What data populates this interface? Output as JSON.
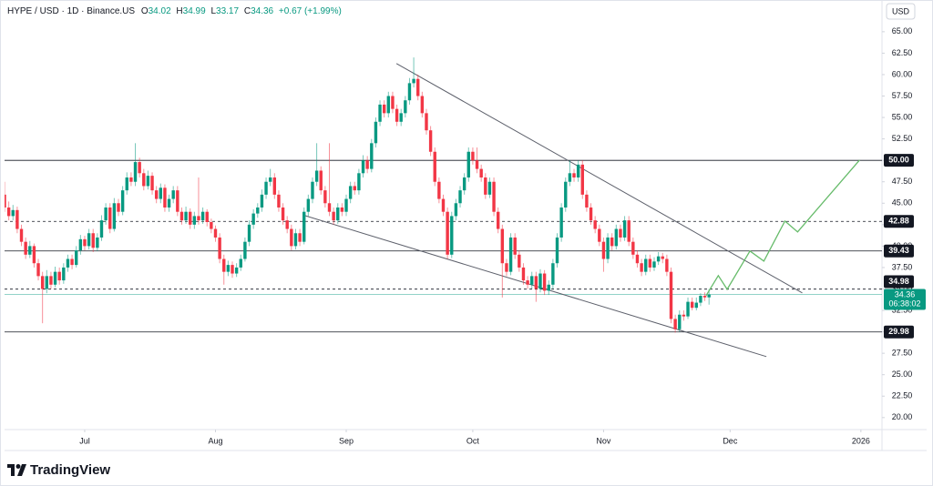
{
  "header": {
    "symbol": "HYPE / USD · 1D · Binance.US",
    "ohlc": [
      {
        "label": "O",
        "value": "34.02"
      },
      {
        "label": "H",
        "value": "34.99"
      },
      {
        "label": "L",
        "value": "33.17"
      },
      {
        "label": "C",
        "value": "34.36"
      }
    ],
    "change": "+0.67 (+1.99%)"
  },
  "currency": "USD",
  "brand": "TradingView",
  "chart_data": {
    "type": "candlestick",
    "up_color": "#089981",
    "down_color": "#f23645",
    "x": [
      0,
      1,
      2,
      3,
      4,
      5,
      6,
      7,
      8,
      9,
      10,
      11,
      12,
      13,
      14,
      15,
      16,
      17,
      18,
      19,
      20,
      21,
      22,
      23,
      24,
      25,
      26,
      27,
      28,
      29,
      30,
      31,
      32,
      33,
      34,
      35,
      36,
      37,
      38,
      39,
      40,
      41,
      42,
      43,
      44,
      45,
      46,
      47,
      48,
      49,
      50,
      51,
      52,
      53,
      54,
      55,
      56,
      57,
      58,
      59,
      60,
      61,
      62,
      63,
      64,
      65,
      66,
      67,
      68,
      69,
      70,
      71,
      72,
      73,
      74,
      75,
      76,
      77,
      78,
      79,
      80,
      81,
      82,
      83,
      84,
      85,
      86,
      87,
      88,
      89,
      90,
      91,
      92,
      93,
      94,
      95,
      96,
      97,
      98,
      99,
      100,
      101,
      102,
      103,
      104,
      105,
      106,
      107,
      108,
      109,
      110,
      111,
      112,
      113,
      114,
      115,
      116,
      117,
      118,
      119,
      120,
      121,
      122,
      123,
      124,
      125,
      126,
      127,
      128,
      129,
      130,
      131,
      132,
      133,
      134,
      135,
      136,
      137,
      138,
      139,
      140,
      141,
      142,
      143,
      144,
      145,
      146,
      147,
      148,
      149,
      150,
      151,
      152,
      153,
      154,
      155,
      156,
      157,
      158,
      159,
      160,
      161,
      162,
      163,
      164,
      165,
      166,
      167
    ],
    "candles": [
      [
        46,
        47.5,
        44,
        44.5
      ],
      [
        44.5,
        45.2,
        43,
        43.5
      ],
      [
        43.5,
        44.8,
        43,
        44.2
      ],
      [
        44.2,
        44.6,
        41.5,
        42
      ],
      [
        42,
        42.5,
        40,
        40.5
      ],
      [
        40.5,
        41,
        38.5,
        39
      ],
      [
        39,
        40.6,
        38.6,
        40
      ],
      [
        40,
        40.3,
        37.5,
        38
      ],
      [
        38,
        38.5,
        36,
        36.5
      ],
      [
        36.5,
        37,
        31,
        35
      ],
      [
        35,
        37.2,
        34.5,
        36.5
      ],
      [
        36.5,
        37,
        35,
        35.5
      ],
      [
        35.5,
        37.6,
        35.2,
        37
      ],
      [
        37,
        37.5,
        35.5,
        36
      ],
      [
        36,
        38,
        35.6,
        37.5
      ],
      [
        37.5,
        39,
        37,
        38.5
      ],
      [
        38.5,
        39,
        37.3,
        37.8
      ],
      [
        37.8,
        40,
        37.5,
        39.5
      ],
      [
        39.5,
        41.3,
        39,
        40.8
      ],
      [
        40.8,
        41.2,
        39.5,
        40
      ],
      [
        40,
        42,
        39.6,
        41.5
      ],
      [
        41.5,
        42,
        39.3,
        39.8
      ],
      [
        39.8,
        41.5,
        39.4,
        41
      ],
      [
        41,
        43.6,
        40.6,
        43
      ],
      [
        43,
        45,
        42.5,
        44.5
      ],
      [
        44.5,
        45,
        41.5,
        42
      ],
      [
        42,
        45.6,
        41.7,
        45
      ],
      [
        45,
        45.5,
        43.5,
        44
      ],
      [
        44,
        47,
        43.6,
        46.5
      ],
      [
        46.5,
        48.6,
        46,
        48
      ],
      [
        48,
        48.6,
        47,
        47.5
      ],
      [
        47.5,
        52,
        47,
        49.8
      ],
      [
        49.8,
        50.3,
        48,
        48.5
      ],
      [
        48.5,
        49,
        46.5,
        47
      ],
      [
        47,
        48.8,
        46.6,
        48.2
      ],
      [
        48.2,
        48.6,
        46,
        46.5
      ],
      [
        46.5,
        47,
        45,
        45.5
      ],
      [
        45.5,
        47.3,
        45,
        46.8
      ],
      [
        46.8,
        47.2,
        44,
        44.5
      ],
      [
        44.5,
        46,
        44,
        45.5
      ],
      [
        45.5,
        47,
        45,
        46.5
      ],
      [
        46.5,
        47,
        43.5,
        44
      ],
      [
        44,
        44.5,
        42.5,
        43
      ],
      [
        43,
        44.6,
        42.6,
        44
      ],
      [
        44,
        44.4,
        42,
        42.5
      ],
      [
        42.5,
        44,
        42,
        43.5
      ],
      [
        43.5,
        48,
        42.5,
        43
      ],
      [
        43,
        44.5,
        42.6,
        44
      ],
      [
        44,
        44.3,
        42.3,
        42.8
      ],
      [
        42.8,
        43.2,
        41.5,
        42
      ],
      [
        42,
        42.4,
        40.5,
        41
      ],
      [
        41,
        41.5,
        38,
        38.5
      ],
      [
        38.5,
        39,
        35.5,
        37
      ],
      [
        37,
        38.3,
        36.5,
        37.8
      ],
      [
        37.8,
        38.2,
        36.3,
        36.8
      ],
      [
        36.8,
        38,
        36.4,
        37.5
      ],
      [
        37.5,
        39,
        37.1,
        38.5
      ],
      [
        38.5,
        41,
        38.2,
        40.5
      ],
      [
        40.5,
        43,
        40,
        42.5
      ],
      [
        42.5,
        44.3,
        42,
        43.8
      ],
      [
        43.8,
        45,
        43.3,
        44.5
      ],
      [
        44.5,
        46.6,
        44,
        46
      ],
      [
        46,
        48,
        45.5,
        47.5
      ],
      [
        47.5,
        49,
        47,
        48
      ],
      [
        48,
        48.5,
        45.5,
        46
      ],
      [
        46,
        46.5,
        44,
        44.5
      ],
      [
        44.5,
        45,
        42.5,
        43
      ],
      [
        43,
        43.5,
        41.5,
        42
      ],
      [
        42,
        42.5,
        39.5,
        40
      ],
      [
        40,
        42,
        39.6,
        41.5
      ],
      [
        41.5,
        42,
        40,
        40.5
      ],
      [
        40.5,
        44.5,
        40.2,
        44
      ],
      [
        44,
        46,
        43.5,
        45.5
      ],
      [
        45.5,
        48,
        45,
        47.5
      ],
      [
        47.5,
        52,
        47,
        48.8
      ],
      [
        48.8,
        49.3,
        46,
        46.5
      ],
      [
        46.5,
        47,
        44.5,
        45
      ],
      [
        45,
        52,
        43.5,
        44
      ],
      [
        44,
        44.5,
        42.5,
        43
      ],
      [
        43,
        45,
        42.6,
        44.5
      ],
      [
        44.5,
        45,
        43.5,
        44
      ],
      [
        44,
        46,
        43.5,
        45.5
      ],
      [
        45.5,
        47.5,
        45,
        47
      ],
      [
        47,
        47.5,
        46,
        46.5
      ],
      [
        46.5,
        49,
        46,
        48.5
      ],
      [
        48.5,
        50.6,
        48,
        50
      ],
      [
        50,
        50.5,
        48.5,
        49
      ],
      [
        49,
        52.5,
        48.6,
        52
      ],
      [
        52,
        55,
        51.5,
        54.5
      ],
      [
        54.5,
        57,
        54,
        56.5
      ],
      [
        56.5,
        57,
        55,
        55.5
      ],
      [
        55.5,
        58,
        55,
        57.5
      ],
      [
        57.5,
        58,
        55.5,
        56
      ],
      [
        56,
        56.5,
        54,
        54.5
      ],
      [
        54.5,
        56,
        54,
        55.5
      ],
      [
        55.5,
        57.5,
        55,
        57
      ],
      [
        57,
        59.6,
        56.5,
        59
      ],
      [
        59,
        62,
        58.5,
        59.5
      ],
      [
        59.5,
        60,
        57,
        57.5
      ],
      [
        57.5,
        58,
        55,
        55.5
      ],
      [
        55.5,
        56,
        53,
        53.5
      ],
      [
        53.5,
        54,
        50.5,
        51
      ],
      [
        51,
        51.5,
        47,
        47.5
      ],
      [
        47.5,
        48,
        45,
        45.5
      ],
      [
        45.5,
        46,
        43.5,
        44
      ],
      [
        44,
        44.5,
        38.5,
        39
      ],
      [
        39,
        44,
        38.6,
        43.5
      ],
      [
        43.5,
        45.5,
        43,
        45
      ],
      [
        45,
        47,
        44.5,
        46.5
      ],
      [
        46.5,
        48.5,
        46,
        48
      ],
      [
        48,
        51.5,
        47.5,
        51
      ],
      [
        51,
        51.5,
        49.5,
        50
      ],
      [
        50,
        51.5,
        48.5,
        49
      ],
      [
        49,
        49.5,
        47.5,
        48
      ],
      [
        48,
        48.5,
        45.5,
        46
      ],
      [
        46,
        48,
        45.6,
        47.5
      ],
      [
        47.5,
        48,
        43.5,
        44
      ],
      [
        44,
        44.5,
        41.5,
        42
      ],
      [
        42,
        42.5,
        34,
        38
      ],
      [
        38,
        38.5,
        36.5,
        37
      ],
      [
        37,
        41.5,
        36.6,
        41
      ],
      [
        41,
        41.5,
        38.5,
        39
      ],
      [
        39,
        39.5,
        37,
        37.5
      ],
      [
        37.5,
        38,
        35.5,
        36
      ],
      [
        36,
        36.5,
        35,
        35.5
      ],
      [
        35.5,
        37,
        35,
        36.5
      ],
      [
        36.5,
        37,
        33.5,
        35
      ],
      [
        35,
        37.3,
        34.6,
        36.8
      ],
      [
        36.8,
        37.2,
        34.3,
        34.8
      ],
      [
        34.8,
        36,
        34.3,
        35.5
      ],
      [
        35.5,
        38.5,
        35,
        38
      ],
      [
        38,
        41.5,
        37.5,
        41
      ],
      [
        41,
        45,
        40.5,
        44.5
      ],
      [
        44.5,
        48,
        44,
        47.5
      ],
      [
        47.5,
        50,
        47,
        48.5
      ],
      [
        48.5,
        49,
        47.5,
        48
      ],
      [
        48,
        50,
        47.5,
        49.5
      ],
      [
        49.5,
        50,
        45.5,
        46
      ],
      [
        46,
        46.5,
        44,
        44.5
      ],
      [
        44.5,
        45,
        42.5,
        43
      ],
      [
        43,
        43.5,
        41.5,
        42
      ],
      [
        42,
        42.5,
        40,
        40.5
      ],
      [
        40.5,
        41,
        37,
        38.5
      ],
      [
        38.5,
        41.5,
        38,
        41
      ],
      [
        41,
        41.5,
        39.5,
        40
      ],
      [
        40,
        42.5,
        39.6,
        42
      ],
      [
        42,
        42.5,
        40.5,
        41
      ],
      [
        41,
        43.5,
        40.6,
        43
      ],
      [
        43,
        43.5,
        40,
        40.5
      ],
      [
        40.5,
        41,
        38.5,
        39
      ],
      [
        39,
        39.5,
        37.5,
        38
      ],
      [
        38,
        38.5,
        36.5,
        37
      ],
      [
        37,
        39,
        36.6,
        38.5
      ],
      [
        38.5,
        39,
        37,
        37.5
      ],
      [
        37.5,
        38.7,
        37.1,
        38.2
      ],
      [
        38.2,
        39.3,
        37.8,
        38.8
      ],
      [
        38.8,
        39.2,
        38,
        38.5
      ],
      [
        38.5,
        39,
        36.5,
        37
      ],
      [
        37,
        37.5,
        31,
        31.5
      ],
      [
        31.5,
        32,
        29.9,
        30.3
      ],
      [
        30.3,
        32.5,
        30,
        32
      ],
      [
        32,
        32.5,
        31.3,
        31.8
      ],
      [
        31.8,
        34,
        31.5,
        33.5
      ],
      [
        33.5,
        34,
        32.5,
        32.8
      ],
      [
        32.8,
        34,
        32.5,
        33.4
      ],
      [
        33.4,
        34.5,
        33,
        34.2
      ],
      [
        34.2,
        34.6,
        33.6,
        34.02
      ],
      [
        34.02,
        34.99,
        33.17,
        34.36
      ]
    ],
    "xlim": [
      0,
      208
    ],
    "xticks": [
      {
        "value": 19,
        "label": "Jul"
      },
      {
        "value": 50,
        "label": "Aug"
      },
      {
        "value": 81,
        "label": "Sep"
      },
      {
        "value": 111,
        "label": "Oct"
      },
      {
        "value": 142,
        "label": "Nov"
      },
      {
        "value": 172,
        "label": "Dec"
      },
      {
        "value": 203,
        "label": "2026"
      }
    ],
    "ylim": [
      18.6,
      68.7
    ],
    "yticks": [
      {
        "value": 20,
        "label": "20.00"
      },
      {
        "value": 22.5,
        "label": "22.50"
      },
      {
        "value": 25,
        "label": "25.00"
      },
      {
        "value": 27.5,
        "label": "27.50"
      },
      {
        "value": 30,
        "label": "30.00"
      },
      {
        "value": 32.5,
        "label": "32.50"
      },
      {
        "value": 35,
        "label": "35.00"
      },
      {
        "value": 37.5,
        "label": "37.50"
      },
      {
        "value": 40,
        "label": "40.00"
      },
      {
        "value": 42.5,
        "label": "42.50"
      },
      {
        "value": 45,
        "label": "45.00"
      },
      {
        "value": 47.5,
        "label": "47.50"
      },
      {
        "value": 50,
        "label": "50.00"
      },
      {
        "value": 52.5,
        "label": "52.50"
      },
      {
        "value": 55,
        "label": "55.00"
      },
      {
        "value": 57.5,
        "label": "57.50"
      },
      {
        "value": 60,
        "label": "60.00"
      },
      {
        "value": 62.5,
        "label": "62.50"
      },
      {
        "value": 65,
        "label": "65.00"
      }
    ],
    "grid": false,
    "levels": [
      {
        "value": 50,
        "label": "50.00",
        "style": "solid"
      },
      {
        "value": 42.88,
        "label": "42.88",
        "style": "dashed"
      },
      {
        "value": 39.43,
        "label": "39.43",
        "style": "solid"
      },
      {
        "value": 34.98,
        "label": "34.98",
        "style": "dashed"
      },
      {
        "value": 29.98,
        "label": "29.98",
        "style": "solid"
      }
    ],
    "last_price": {
      "value": 34.36,
      "label": "34.36",
      "countdown": "06:38:02",
      "color": "#089981"
    },
    "trendlines": [
      {
        "x": [
          92.9,
          189.1
        ],
        "y": [
          61.29,
          34.54
        ]
      },
      {
        "x": [
          71.2,
          180.6
        ],
        "y": [
          43.56,
          27.11
        ]
      }
    ],
    "projection": {
      "color": "#66bb6a",
      "x": [
        166.3,
        169.2,
        171.3,
        176.7,
        180.0,
        185.0,
        188.0,
        202.7
      ],
      "y": [
        34.22,
        36.56,
        34.96,
        39.42,
        38.25,
        42.92,
        41.65,
        50.04
      ]
    }
  }
}
